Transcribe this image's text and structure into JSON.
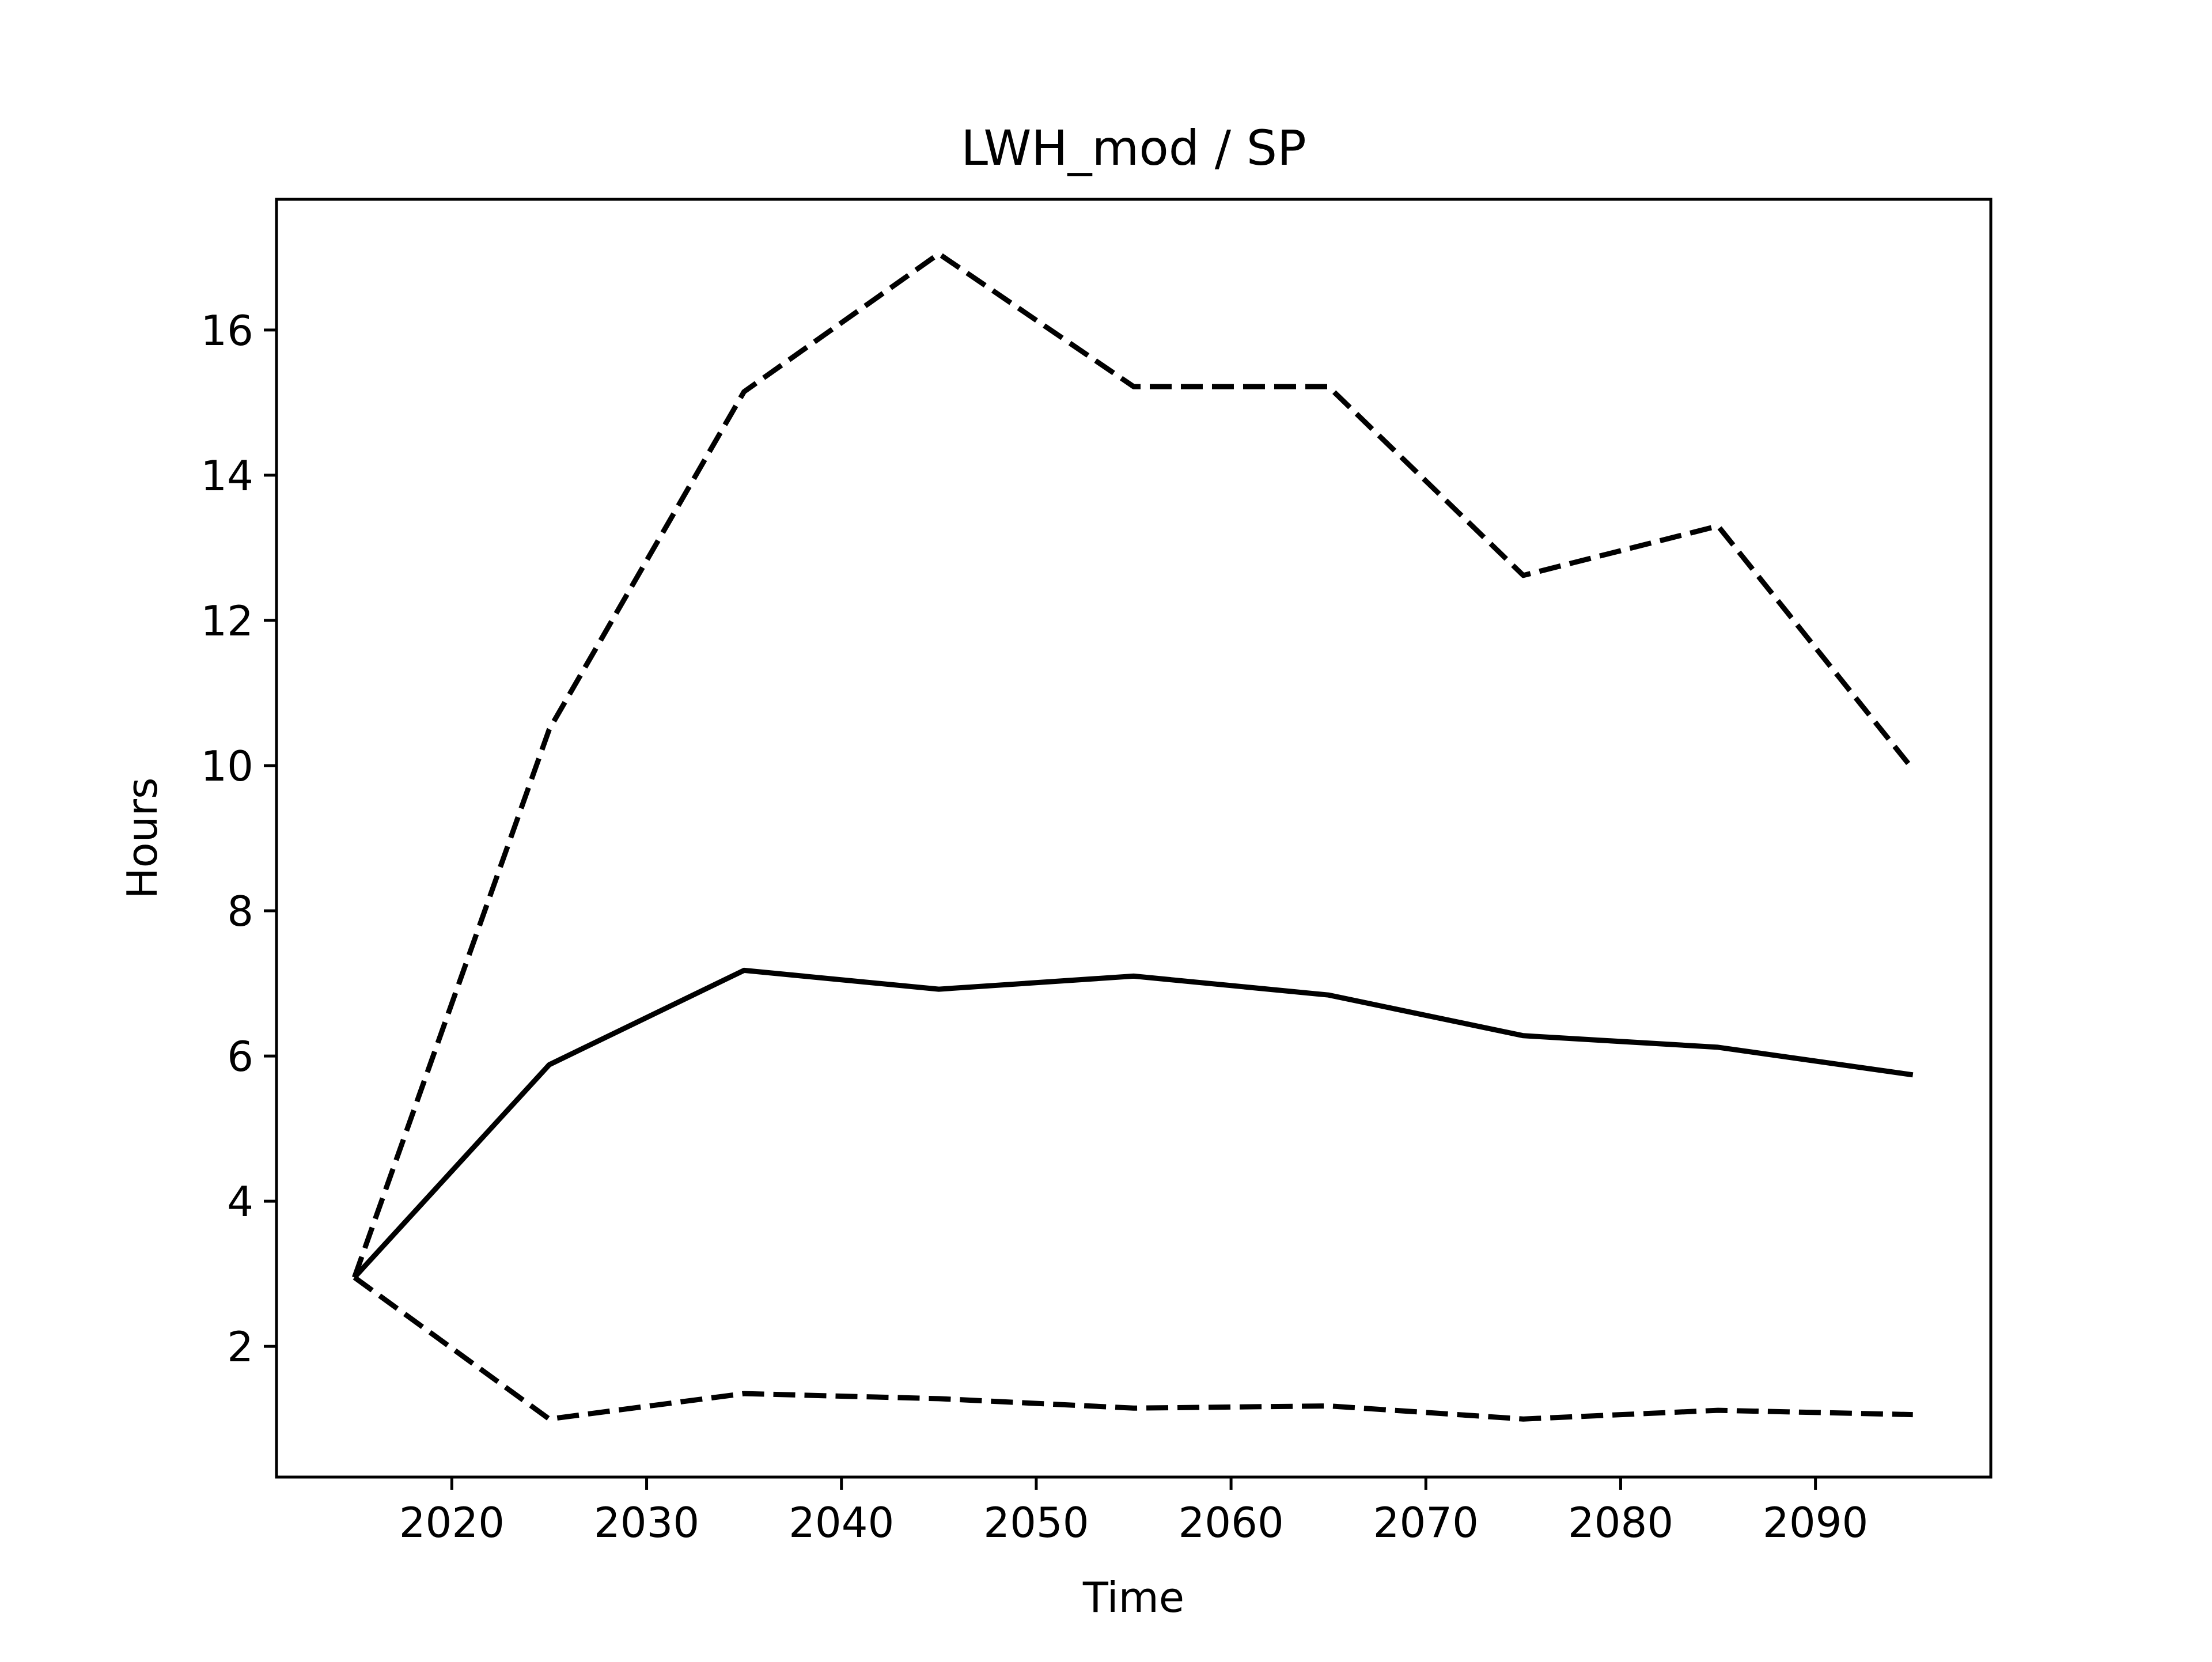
{
  "chart_data": {
    "type": "line",
    "title": "LWH_mod / SP",
    "xlabel": "Time",
    "ylabel": "Hours",
    "xlim": [
      2011,
      2099
    ],
    "ylim": [
      0.2,
      17.8
    ],
    "x_ticks": [
      2020,
      2030,
      2040,
      2050,
      2060,
      2070,
      2080,
      2090
    ],
    "y_ticks": [
      2,
      4,
      6,
      8,
      10,
      12,
      14,
      16
    ],
    "grid": false,
    "legend": "none",
    "x": [
      2015,
      2025,
      2035,
      2045,
      2055,
      2065,
      2075,
      2085,
      2095
    ],
    "series": [
      {
        "style": "dashed",
        "color": "#000000",
        "values": [
          2.95,
          10.5,
          15.15,
          17.05,
          15.22,
          15.22,
          12.62,
          13.3,
          9.95
        ]
      },
      {
        "style": "solid",
        "color": "#000000",
        "values": [
          2.95,
          5.88,
          7.18,
          6.92,
          7.1,
          6.84,
          6.28,
          6.12,
          5.74
        ]
      },
      {
        "style": "dashed",
        "color": "#000000",
        "values": [
          2.95,
          1.0,
          1.35,
          1.28,
          1.15,
          1.18,
          1.0,
          1.12,
          1.06
        ]
      }
    ]
  }
}
